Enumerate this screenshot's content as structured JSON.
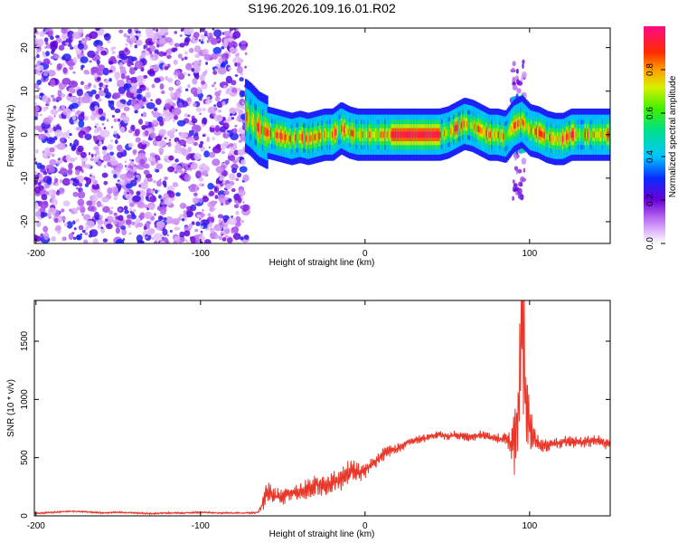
{
  "page_title": "S196.2026.109.16.01.R02",
  "colors": {
    "snr_line": "#e8372a",
    "frame": "#000000",
    "background": "#ffffff"
  },
  "chart_data": [
    {
      "type": "heatmap",
      "title": "S196.2026.109.16.01.R02",
      "xlabel": "Height of straight line (km)",
      "ylabel": "Frequency (Hz)",
      "xlim": [
        -201,
        149
      ],
      "ylim": [
        -25,
        24.5
      ],
      "x_ticks": [
        -200,
        -100,
        0,
        100
      ],
      "x_tick_labels": [
        "-200",
        "-100",
        "0",
        "100"
      ],
      "y_ticks": [
        -20,
        -10,
        0,
        10,
        20
      ],
      "y_tick_labels": [
        "-20",
        "-10",
        "0",
        "10",
        "20"
      ],
      "colorbar": {
        "label": "Normalized spectral amplitude",
        "range": [
          0,
          1
        ],
        "ticks": [
          0.0,
          0.2,
          0.4,
          0.6,
          0.8
        ],
        "tick_labels": [
          "0.0",
          "0.2",
          "0.4",
          "0.6",
          "0.8"
        ],
        "colormap": "rainbow (purple-blue-cyan-green-yellow-red-magenta)"
      },
      "segments": [
        {
          "range": [
            -201,
            -72
          ],
          "description": "noise",
          "amplitude": [
            0.05,
            0.3
          ]
        },
        {
          "range": [
            -72,
            149
          ],
          "description": "carrier tone",
          "amplitude": [
            0.5,
            1.0
          ]
        }
      ],
      "carrier_track": {
        "x": [
          -75,
          -70,
          -65,
          -60,
          -55,
          -50,
          -45,
          -40,
          -35,
          -30,
          -25,
          -20,
          -15,
          -10,
          -5,
          0,
          5,
          10,
          15,
          20,
          25,
          30,
          35,
          40,
          45,
          50,
          55,
          60,
          65,
          70,
          75,
          80,
          85,
          90,
          95,
          100,
          105,
          110,
          115,
          120,
          125,
          130,
          135,
          140,
          145,
          149
        ],
        "freq": [
          5,
          3.5,
          1.5,
          0.5,
          0,
          -0.5,
          -1,
          -0.5,
          -1,
          -0.5,
          0,
          0,
          1.5,
          0.5,
          0,
          0,
          0,
          0,
          0,
          0,
          0,
          0,
          0,
          0,
          0,
          0.5,
          1.5,
          2.5,
          2,
          1,
          0,
          0,
          -0.5,
          2,
          3,
          1,
          0.5,
          -0.5,
          -1,
          -1,
          0,
          0,
          0,
          0,
          0,
          0
        ]
      },
      "interference_features": [
        {
          "x": 93,
          "freq_range": [
            -15,
            18
          ],
          "amplitude": 0.25
        },
        {
          "x": 94,
          "freq_range": [
            -4,
            9
          ],
          "amplitude": 0.6
        }
      ]
    },
    {
      "type": "line",
      "xlabel": "Height of straight line (km)",
      "ylabel": "SNR (10 * v/v)",
      "xlim": [
        -201,
        149
      ],
      "ylim": [
        0,
        1850
      ],
      "x_ticks": [
        -200,
        -100,
        0,
        100
      ],
      "x_tick_labels": [
        "-200",
        "-100",
        "0",
        "100"
      ],
      "y_ticks": [
        0,
        500,
        1000,
        1500
      ],
      "y_tick_labels": [
        "0",
        "500",
        "1000",
        "1500"
      ],
      "series": [
        {
          "name": "SNR",
          "x": [
            -201,
            -190,
            -180,
            -170,
            -160,
            -150,
            -140,
            -130,
            -120,
            -110,
            -100,
            -90,
            -80,
            -70,
            -65,
            -62,
            -60,
            -55,
            -50,
            -45,
            -40,
            -35,
            -30,
            -25,
            -20,
            -15,
            -10,
            -5,
            0,
            5,
            10,
            15,
            20,
            25,
            30,
            35,
            40,
            45,
            50,
            55,
            60,
            65,
            70,
            75,
            80,
            85,
            88,
            90,
            92,
            94,
            96,
            98,
            100,
            102,
            104,
            106,
            110,
            115,
            120,
            125,
            130,
            135,
            140,
            145,
            149
          ],
          "y": [
            20,
            30,
            40,
            35,
            25,
            30,
            25,
            20,
            25,
            25,
            30,
            25,
            25,
            25,
            30,
            110,
            200,
            180,
            160,
            200,
            210,
            230,
            260,
            250,
            280,
            300,
            370,
            380,
            390,
            450,
            520,
            560,
            580,
            620,
            650,
            660,
            680,
            700,
            680,
            700,
            680,
            680,
            690,
            680,
            660,
            670,
            650,
            600,
            750,
            1100,
            1600,
            900,
            750,
            700,
            650,
            620,
            600,
            620,
            630,
            640,
            630,
            640,
            650,
            630,
            610
          ],
          "envelope_amplitude": [
            8,
            8,
            8,
            8,
            8,
            8,
            8,
            8,
            8,
            8,
            8,
            8,
            8,
            8,
            8,
            80,
            120,
            90,
            70,
            80,
            90,
            100,
            110,
            100,
            110,
            110,
            120,
            110,
            80,
            70,
            60,
            60,
            50,
            45,
            45,
            40,
            35,
            35,
            35,
            40,
            40,
            40,
            45,
            45,
            50,
            60,
            100,
            250,
            450,
            650,
            700,
            500,
            300,
            150,
            90,
            70,
            60,
            55,
            55,
            55,
            55,
            55,
            55,
            55,
            55
          ]
        }
      ]
    }
  ]
}
